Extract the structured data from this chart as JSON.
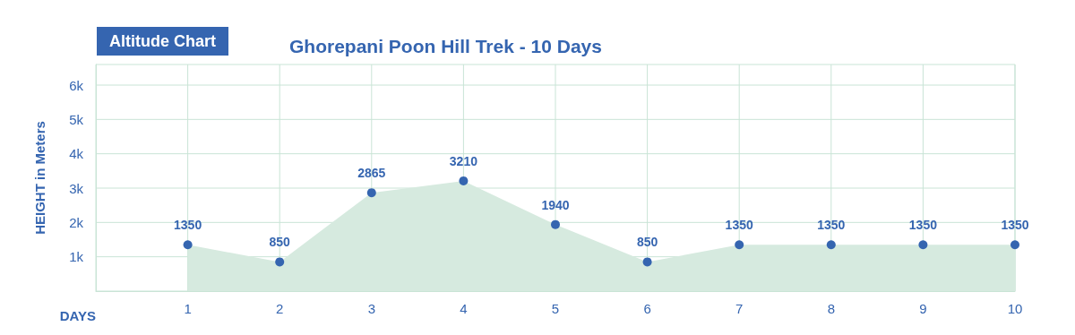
{
  "chart_data": {
    "type": "area",
    "title": "Ghorepani Poon Hill Trek - 10 Days",
    "subtitle": "Altitude Chart",
    "xlabel": "DAYS",
    "ylabel": "HEIGHT in Meters",
    "x": [
      1,
      2,
      3,
      4,
      5,
      6,
      7,
      8,
      9,
      10
    ],
    "series": [
      {
        "color": "#3565b0",
        "values": [
          1350,
          850,
          2865,
          3210,
          1940,
          850,
          1350,
          1350,
          1350,
          1350
        ]
      }
    ],
    "xlim": [
      0,
      10
    ],
    "xticks": [
      1,
      2,
      3,
      4,
      5,
      6,
      7,
      8,
      9,
      10
    ],
    "ylim": [
      0,
      6600
    ],
    "yticks": [
      {
        "value": 1000,
        "label": "1k"
      },
      {
        "value": 2000,
        "label": "2k"
      },
      {
        "value": 3000,
        "label": "3k"
      },
      {
        "value": 4000,
        "label": "4k"
      },
      {
        "value": 5000,
        "label": "5k"
      },
      {
        "value": 6000,
        "label": "6k"
      }
    ],
    "grid": true,
    "marker": "circle",
    "data_labels": true
  }
}
